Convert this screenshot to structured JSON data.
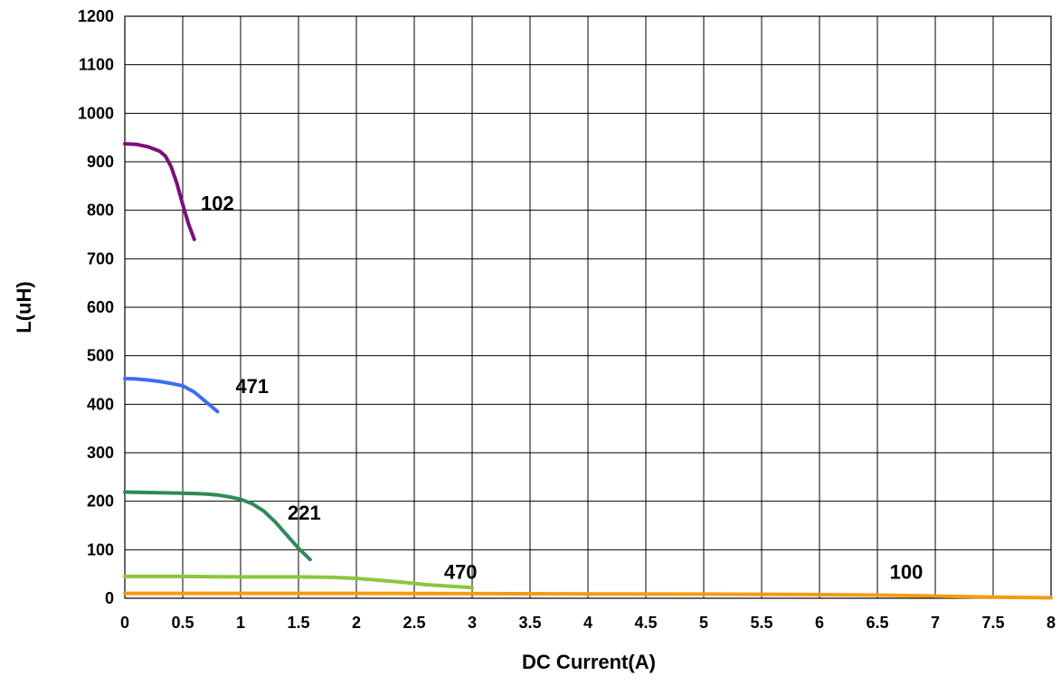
{
  "chart_data": {
    "type": "line",
    "title": "",
    "xlabel": "DC Current(A)",
    "ylabel": "L(uH)",
    "xlim": [
      0,
      8
    ],
    "ylim": [
      0,
      1200
    ],
    "xticks": [
      "0",
      "0.5",
      "1",
      "1.5",
      "2",
      "2.5",
      "3",
      "3.5",
      "4",
      "4.5",
      "5",
      "5.5",
      "6",
      "6.5",
      "7",
      "7.5",
      "8"
    ],
    "yticks": [
      "0",
      "100",
      "200",
      "300",
      "400",
      "500",
      "600",
      "700",
      "800",
      "900",
      "1000",
      "1100",
      "1200"
    ],
    "grid": true,
    "legend": "none",
    "series": [
      {
        "name": "102",
        "color": "#7b0f7b",
        "label_at": [
          0.8,
          815
        ],
        "x": [
          0,
          0.1,
          0.2,
          0.3,
          0.35,
          0.4,
          0.45,
          0.5,
          0.55,
          0.6
        ],
        "y": [
          937,
          936,
          931,
          922,
          912,
          890,
          855,
          812,
          772,
          740
        ]
      },
      {
        "name": "471",
        "color": "#3b6ef2",
        "label_at": [
          1.1,
          438
        ],
        "x": [
          0,
          0.1,
          0.2,
          0.3,
          0.4,
          0.5,
          0.6,
          0.7,
          0.8
        ],
        "y": [
          453,
          452,
          450,
          447,
          443,
          438,
          425,
          405,
          385
        ]
      },
      {
        "name": "221",
        "color": "#2e8b57",
        "label_at": [
          1.55,
          177
        ],
        "x": [
          0,
          0.2,
          0.4,
          0.6,
          0.7,
          0.8,
          0.9,
          1.0,
          1.1,
          1.2,
          1.3,
          1.4,
          1.5,
          1.6
        ],
        "y": [
          219,
          218,
          217,
          216,
          215,
          213,
          209,
          204,
          195,
          180,
          157,
          130,
          103,
          80
        ]
      },
      {
        "name": "470",
        "color": "#8cc63f",
        "label_at": [
          2.9,
          55
        ],
        "x": [
          0,
          0.5,
          1,
          1.5,
          1.8,
          2.0,
          2.2,
          2.4,
          2.6,
          2.8,
          3.0
        ],
        "y": [
          45,
          45,
          44,
          44,
          43,
          41,
          37,
          33,
          28,
          25,
          22
        ]
      },
      {
        "name": "100",
        "color": "#f39c12",
        "label_at": [
          6.75,
          55
        ],
        "x": [
          0,
          1,
          2,
          3,
          4,
          5,
          6,
          6.5,
          7,
          7.5,
          8
        ],
        "y": [
          10,
          10,
          10,
          9.5,
          9,
          8.5,
          7.5,
          6.5,
          4.5,
          2.5,
          1
        ]
      }
    ]
  }
}
